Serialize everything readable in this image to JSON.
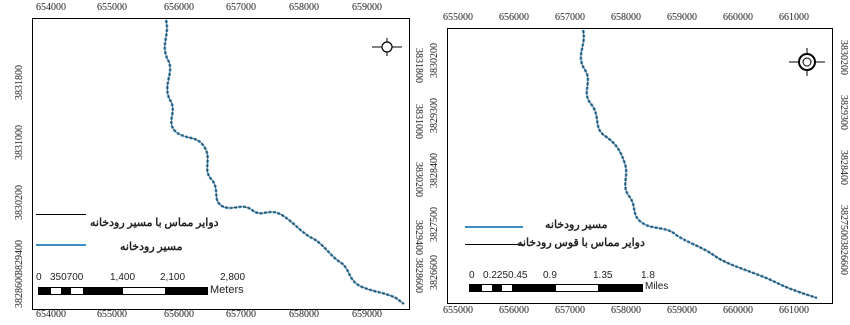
{
  "left_map": {
    "top_ticks": [
      "654000",
      "655000",
      "656000",
      "657000",
      "658000",
      "659000"
    ],
    "bottom_ticks": [
      "654000",
      "655000",
      "656000",
      "657000",
      "658000",
      "659000"
    ],
    "left_ticks": [
      "3831800",
      "3831000",
      "3830200",
      "3829400",
      "3828600"
    ],
    "right_ticks": [
      "3831800",
      "3831000",
      "3830200",
      "3829400",
      "3828600"
    ],
    "legend": {
      "circles_label": "دوایر مماس با مسیر رودخانه",
      "river_label": "مسیر رودخانه"
    },
    "scale": {
      "labels": [
        "0",
        "350700",
        "1,400",
        "2,100",
        "2,800"
      ],
      "unit": "Meters"
    },
    "north_letters": {
      "n": "N",
      "e": "E",
      "s": "S",
      "w": "W"
    }
  },
  "right_map": {
    "top_ticks": [
      "655000",
      "656000",
      "657000",
      "658000",
      "659000",
      "660000",
      "661000"
    ],
    "bottom_ticks": [
      "655000",
      "656000",
      "657000",
      "658000",
      "659000",
      "660000",
      "661000"
    ],
    "left_ticks": [
      "3830200",
      "3829300",
      "3828400",
      "3827500",
      "3826600"
    ],
    "right_ticks": [
      "3830200",
      "3829300",
      "3828400",
      "3827500",
      "3826600"
    ],
    "legend": {
      "river_label": "مسیر رودخانه",
      "circles_label": "دوایر مماس با قوس رودخانه"
    },
    "scale": {
      "labels": [
        "0",
        "0.2250.45",
        "0.9",
        "1.35",
        "1.8"
      ],
      "unit": "Miles"
    },
    "north_letters": {
      "n": "N",
      "e": "E",
      "s": "S",
      "w": "W"
    }
  },
  "colors": {
    "river": "#3b8fc4",
    "circles": "#1a1a1a",
    "frame": "#000000"
  }
}
